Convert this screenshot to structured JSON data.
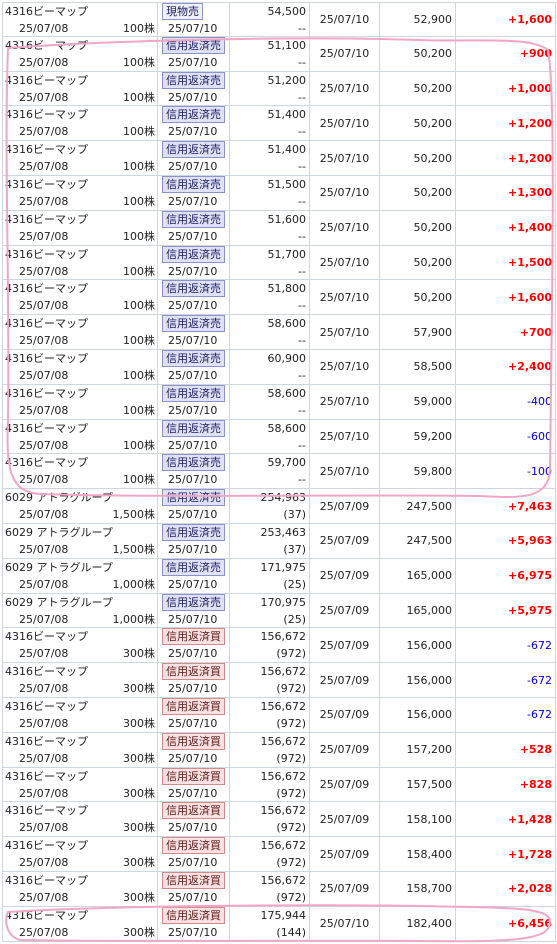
{
  "rows": [
    {
      "name": "4316ビーマップ",
      "date": "25/07/08",
      "qty": "100株",
      "type": "現物売",
      "kind": "spot",
      "settle": "25/07/10",
      "price": "54,500",
      "sub": "--",
      "exec": "25/07/10",
      "value": "52,900",
      "pl": "+1,600",
      "sign": "pos"
    },
    {
      "name": "4316ビーマップ",
      "date": "25/07/08",
      "qty": "100株",
      "type": "信用返済売",
      "kind": "sell",
      "settle": "25/07/10",
      "price": "51,100",
      "sub": "--",
      "exec": "25/07/10",
      "value": "50,200",
      "pl": "+900",
      "sign": "pos"
    },
    {
      "name": "4316ビーマップ",
      "date": "25/07/08",
      "qty": "100株",
      "type": "信用返済売",
      "kind": "sell",
      "settle": "25/07/10",
      "price": "51,200",
      "sub": "--",
      "exec": "25/07/10",
      "value": "50,200",
      "pl": "+1,000",
      "sign": "pos"
    },
    {
      "name": "4316ビーマップ",
      "date": "25/07/08",
      "qty": "100株",
      "type": "信用返済売",
      "kind": "sell",
      "settle": "25/07/10",
      "price": "51,400",
      "sub": "--",
      "exec": "25/07/10",
      "value": "50,200",
      "pl": "+1,200",
      "sign": "pos"
    },
    {
      "name": "4316ビーマップ",
      "date": "25/07/08",
      "qty": "100株",
      "type": "信用返済売",
      "kind": "sell",
      "settle": "25/07/10",
      "price": "51,400",
      "sub": "--",
      "exec": "25/07/10",
      "value": "50,200",
      "pl": "+1,200",
      "sign": "pos"
    },
    {
      "name": "4316ビーマップ",
      "date": "25/07/08",
      "qty": "100株",
      "type": "信用返済売",
      "kind": "sell",
      "settle": "25/07/10",
      "price": "51,500",
      "sub": "--",
      "exec": "25/07/10",
      "value": "50,200",
      "pl": "+1,300",
      "sign": "pos"
    },
    {
      "name": "4316ビーマップ",
      "date": "25/07/08",
      "qty": "100株",
      "type": "信用返済売",
      "kind": "sell",
      "settle": "25/07/10",
      "price": "51,600",
      "sub": "--",
      "exec": "25/07/10",
      "value": "50,200",
      "pl": "+1,400",
      "sign": "pos"
    },
    {
      "name": "4316ビーマップ",
      "date": "25/07/08",
      "qty": "100株",
      "type": "信用返済売",
      "kind": "sell",
      "settle": "25/07/10",
      "price": "51,700",
      "sub": "--",
      "exec": "25/07/10",
      "value": "50,200",
      "pl": "+1,500",
      "sign": "pos"
    },
    {
      "name": "4316ビーマップ",
      "date": "25/07/08",
      "qty": "100株",
      "type": "信用返済売",
      "kind": "sell",
      "settle": "25/07/10",
      "price": "51,800",
      "sub": "--",
      "exec": "25/07/10",
      "value": "50,200",
      "pl": "+1,600",
      "sign": "pos"
    },
    {
      "name": "4316ビーマップ",
      "date": "25/07/08",
      "qty": "100株",
      "type": "信用返済売",
      "kind": "sell",
      "settle": "25/07/10",
      "price": "58,600",
      "sub": "--",
      "exec": "25/07/10",
      "value": "57,900",
      "pl": "+700",
      "sign": "pos"
    },
    {
      "name": "4316ビーマップ",
      "date": "25/07/08",
      "qty": "100株",
      "type": "信用返済売",
      "kind": "sell",
      "settle": "25/07/10",
      "price": "60,900",
      "sub": "--",
      "exec": "25/07/10",
      "value": "58,500",
      "pl": "+2,400",
      "sign": "pos"
    },
    {
      "name": "4316ビーマップ",
      "date": "25/07/08",
      "qty": "100株",
      "type": "信用返済売",
      "kind": "sell",
      "settle": "25/07/10",
      "price": "58,600",
      "sub": "--",
      "exec": "25/07/10",
      "value": "59,000",
      "pl": "-400",
      "sign": "neg"
    },
    {
      "name": "4316ビーマップ",
      "date": "25/07/08",
      "qty": "100株",
      "type": "信用返済売",
      "kind": "sell",
      "settle": "25/07/10",
      "price": "58,600",
      "sub": "--",
      "exec": "25/07/10",
      "value": "59,200",
      "pl": "-600",
      "sign": "neg"
    },
    {
      "name": "4316ビーマップ",
      "date": "25/07/08",
      "qty": "100株",
      "type": "信用返済売",
      "kind": "sell",
      "settle": "25/07/10",
      "price": "59,700",
      "sub": "--",
      "exec": "25/07/10",
      "value": "59,800",
      "pl": "-100",
      "sign": "neg"
    },
    {
      "name": "6029 アトラグループ",
      "date": "25/07/08",
      "qty": "1,500株",
      "type": "信用返済売",
      "kind": "sell",
      "settle": "25/07/10",
      "price": "254,963",
      "sub": "(37)",
      "exec": "25/07/09",
      "value": "247,500",
      "pl": "+7,463",
      "sign": "pos"
    },
    {
      "name": "6029 アトラグループ",
      "date": "25/07/08",
      "qty": "1,500株",
      "type": "信用返済売",
      "kind": "sell",
      "settle": "25/07/10",
      "price": "253,463",
      "sub": "(37)",
      "exec": "25/07/09",
      "value": "247,500",
      "pl": "+5,963",
      "sign": "pos"
    },
    {
      "name": "6029 アトラグループ",
      "date": "25/07/08",
      "qty": "1,000株",
      "type": "信用返済売",
      "kind": "sell",
      "settle": "25/07/10",
      "price": "171,975",
      "sub": "(25)",
      "exec": "25/07/09",
      "value": "165,000",
      "pl": "+6,975",
      "sign": "pos"
    },
    {
      "name": "6029 アトラグループ",
      "date": "25/07/08",
      "qty": "1,000株",
      "type": "信用返済売",
      "kind": "sell",
      "settle": "25/07/10",
      "price": "170,975",
      "sub": "(25)",
      "exec": "25/07/09",
      "value": "165,000",
      "pl": "+5,975",
      "sign": "pos"
    },
    {
      "name": "4316ビーマップ",
      "date": "25/07/08",
      "qty": "300株",
      "type": "信用返済買",
      "kind": "buy",
      "settle": "25/07/10",
      "price": "156,672",
      "sub": "(972)",
      "exec": "25/07/09",
      "value": "156,000",
      "pl": "-672",
      "sign": "neg"
    },
    {
      "name": "4316ビーマップ",
      "date": "25/07/08",
      "qty": "300株",
      "type": "信用返済買",
      "kind": "buy",
      "settle": "25/07/10",
      "price": "156,672",
      "sub": "(972)",
      "exec": "25/07/09",
      "value": "156,000",
      "pl": "-672",
      "sign": "neg"
    },
    {
      "name": "4316ビーマップ",
      "date": "25/07/08",
      "qty": "300株",
      "type": "信用返済買",
      "kind": "buy",
      "settle": "25/07/10",
      "price": "156,672",
      "sub": "(972)",
      "exec": "25/07/09",
      "value": "156,000",
      "pl": "-672",
      "sign": "neg"
    },
    {
      "name": "4316ビーマップ",
      "date": "25/07/08",
      "qty": "300株",
      "type": "信用返済買",
      "kind": "buy",
      "settle": "25/07/10",
      "price": "156,672",
      "sub": "(972)",
      "exec": "25/07/09",
      "value": "157,200",
      "pl": "+528",
      "sign": "pos"
    },
    {
      "name": "4316ビーマップ",
      "date": "25/07/08",
      "qty": "300株",
      "type": "信用返済買",
      "kind": "buy",
      "settle": "25/07/10",
      "price": "156,672",
      "sub": "(972)",
      "exec": "25/07/09",
      "value": "157,500",
      "pl": "+828",
      "sign": "pos"
    },
    {
      "name": "4316ビーマップ",
      "date": "25/07/08",
      "qty": "300株",
      "type": "信用返済買",
      "kind": "buy",
      "settle": "25/07/10",
      "price": "156,672",
      "sub": "(972)",
      "exec": "25/07/09",
      "value": "158,100",
      "pl": "+1,428",
      "sign": "pos"
    },
    {
      "name": "4316ビーマップ",
      "date": "25/07/08",
      "qty": "300株",
      "type": "信用返済買",
      "kind": "buy",
      "settle": "25/07/10",
      "price": "156,672",
      "sub": "(972)",
      "exec": "25/07/09",
      "value": "158,400",
      "pl": "+1,728",
      "sign": "pos"
    },
    {
      "name": "4316ビーマップ",
      "date": "25/07/08",
      "qty": "300株",
      "type": "信用返済買",
      "kind": "buy",
      "settle": "25/07/10",
      "price": "156,672",
      "sub": "(972)",
      "exec": "25/07/09",
      "value": "158,700",
      "pl": "+2,028",
      "sign": "pos"
    },
    {
      "name": "4316ビーマップ",
      "date": "25/07/08",
      "qty": "300株",
      "type": "信用返済買",
      "kind": "buy",
      "settle": "25/07/10",
      "price": "175,944",
      "sub": "(144)",
      "exec": "25/07/10",
      "value": "182,400",
      "pl": "+6,456",
      "sign": "pos"
    }
  ],
  "colors": {
    "positive": "#ff0000",
    "negative": "#0000d8",
    "sell_badge": "#dfe2f7",
    "buy_badge": "#fbe2e2",
    "annotation": "#f2a6c6"
  }
}
